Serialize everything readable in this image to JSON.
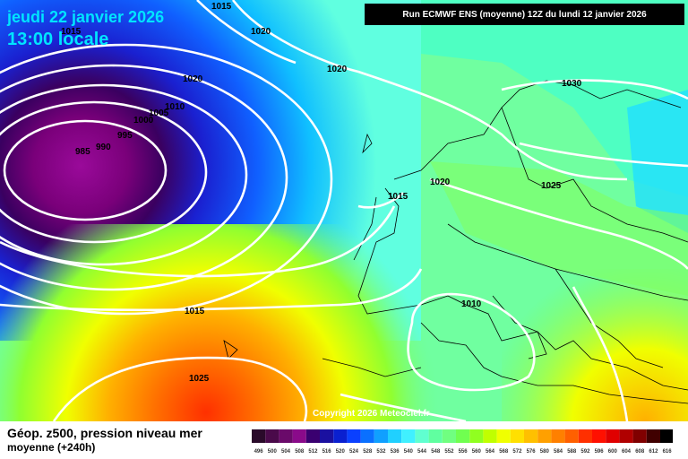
{
  "header": {
    "date": "jeudi 22 janvier 2026",
    "time": "13:00 locale",
    "run": "Run ECMWF ENS (moyenne) 12Z du lundi 12 janvier 2026"
  },
  "copyright": "Copyright 2026 Meteociel.fr",
  "legend": {
    "title": "Géop. z500, pression niveau mer",
    "subtitle": "moyenne   (+240h)",
    "unit_values": [
      "496",
      "500",
      "504",
      "508",
      "512",
      "516",
      "520",
      "524",
      "528",
      "532",
      "536",
      "540",
      "544",
      "548",
      "552",
      "556",
      "560",
      "564",
      "568",
      "572",
      "576",
      "580",
      "584",
      "588",
      "592",
      "596",
      "600",
      "604",
      "608",
      "612",
      "616"
    ],
    "colors": [
      "#2a0a2a",
      "#4a0a4a",
      "#6a0a6a",
      "#8a0a8a",
      "#3a0070",
      "#1a10a0",
      "#0a20d0",
      "#0a40ff",
      "#0a70ff",
      "#10a0ff",
      "#20d0ff",
      "#40f0ff",
      "#60ffd0",
      "#60ffa0",
      "#70ff80",
      "#70ff50",
      "#90ff20",
      "#c0ff00",
      "#f0ff00",
      "#ffe000",
      "#ffc000",
      "#ffa000",
      "#ff8000",
      "#ff6000",
      "#ff3000",
      "#ff1000",
      "#e00000",
      "#b00000",
      "#800000",
      "#400000",
      "#000000"
    ]
  },
  "isobars": [
    "1015",
    "1020",
    "1020",
    "1020",
    "1030",
    "1010",
    "1005",
    "1000",
    "995",
    "990",
    "985",
    "1015",
    "1020",
    "1025",
    "1015",
    "1010",
    "1025"
  ]
}
